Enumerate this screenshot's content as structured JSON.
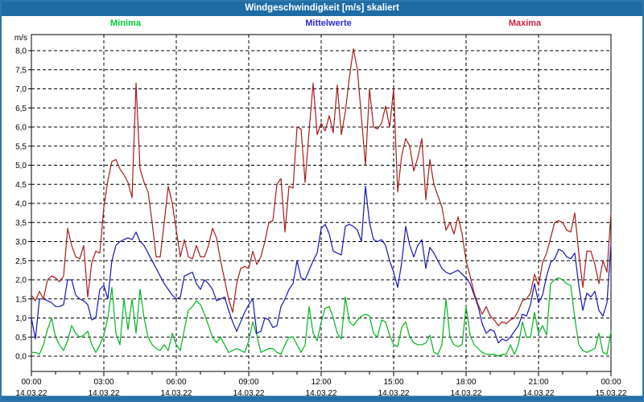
{
  "window": {
    "title": "Windgeschwindigkeit [m/s] skaliert",
    "titlebar_color": "#1e6ca3",
    "frame_color": "#2e77ad"
  },
  "legend": {
    "items": [
      {
        "label": "Minima",
        "color": "#00cc33"
      },
      {
        "label": "Mittelwerte",
        "color": "#2a2ad4"
      },
      {
        "label": "Maxima",
        "color": "#cc2244"
      }
    ]
  },
  "axis": {
    "unit_label": "m/s",
    "y_tick_labels": [
      "8,0",
      "7,5",
      "7,0",
      "6,5",
      "6,0",
      "5,5",
      "5,0",
      "4,5",
      "4,0",
      "3,5",
      "3,0",
      "2,5",
      "2,0",
      "1,5",
      "1,0",
      "0,5",
      "0,0"
    ],
    "x_ticks": [
      {
        "time": "00:00",
        "date": "14.03.22"
      },
      {
        "time": "03:00",
        "date": "14.03.22"
      },
      {
        "time": "06:00",
        "date": "14.03.22"
      },
      {
        "time": "09:00",
        "date": "14.03.22"
      },
      {
        "time": "12:00",
        "date": "14.03.22"
      },
      {
        "time": "15:00",
        "date": "14.03.22"
      },
      {
        "time": "18:00",
        "date": "14.03.22"
      },
      {
        "time": "21:00",
        "date": "14.03.22"
      },
      {
        "time": "00:00",
        "date": "15.03.22"
      }
    ]
  },
  "chart_data": {
    "type": "line",
    "title": "Windgeschwindigkeit [m/s] skaliert",
    "xlabel": "",
    "ylabel": "m/s",
    "ylim": [
      0,
      8.4
    ],
    "y_tick_step": 0.5,
    "grid": "dashed both axes",
    "legend_position": "top",
    "x_start": "14.03.22 00:00",
    "x_end": "15.03.22 00:00",
    "interval_minutes": 10,
    "series": [
      {
        "name": "Minima",
        "color": "#00b41e",
        "values": [
          0.1,
          0.1,
          0.05,
          0.3,
          0.7,
          1.0,
          0.5,
          0.3,
          0.15,
          0.4,
          0.8,
          0.6,
          0.5,
          0.55,
          0.65,
          0.3,
          0.1,
          0.3,
          0.55,
          1.0,
          1.8,
          0.6,
          0.3,
          1.5,
          0.7,
          1.5,
          0.6,
          1.75,
          1.0,
          0.5,
          0.3,
          0.2,
          0.15,
          0.3,
          0.15,
          0.6,
          0.3,
          0.15,
          0.7,
          1.2,
          1.3,
          1.45,
          1.35,
          1.1,
          0.8,
          0.5,
          0.35,
          0.5,
          0.3,
          0.1,
          0.15,
          0.2,
          0.15,
          0.1,
          0.4,
          0.9,
          0.55,
          0.1,
          0.15,
          0.2,
          0.2,
          0.1,
          0.05,
          0.3,
          0.5,
          0.5,
          0.3,
          0.1,
          0.3,
          1.3,
          0.6,
          0.4,
          0.9,
          1.25,
          1.3,
          1.0,
          0.6,
          0.45,
          1.55,
          0.9,
          0.8,
          0.95,
          1.05,
          1.1,
          1.05,
          0.6,
          0.5,
          0.95,
          0.9,
          0.55,
          0.3,
          0.25,
          0.75,
          0.9,
          0.5,
          0.35,
          0.3,
          0.3,
          0.35,
          0.55,
          0.1,
          0.05,
          0.3,
          1.5,
          0.5,
          0.3,
          0.25,
          0.3,
          1.3,
          0.55,
          0.3,
          0.2,
          0.1,
          0.05,
          0.05,
          0.05,
          0.0,
          0.05,
          0.05,
          0.3,
          0.05,
          0.3,
          0.9,
          0.5,
          0.5,
          1.15,
          0.6,
          0.8,
          0.55,
          1.9,
          2.0,
          2.05,
          2.0,
          1.9,
          1.85,
          1.0,
          0.3,
          0.15,
          0.1,
          0.15,
          0.2,
          0.6,
          0.1,
          0.05,
          0.65
        ]
      },
      {
        "name": "Mittelwerte",
        "color": "#1515b5",
        "values": [
          1.0,
          0.45,
          1.5,
          1.5,
          1.45,
          1.4,
          1.3,
          1.3,
          1.35,
          2.0,
          2.0,
          1.6,
          1.5,
          1.45,
          1.35,
          0.95,
          1.0,
          1.75,
          1.85,
          1.5,
          2.5,
          2.9,
          3.0,
          3.05,
          3.1,
          3.05,
          3.25,
          3.0,
          2.9,
          2.7,
          2.5,
          2.3,
          2.1,
          1.9,
          1.75,
          1.6,
          1.5,
          1.55,
          2.1,
          2.15,
          2.2,
          1.9,
          1.75,
          2.0,
          1.9,
          1.75,
          1.45,
          1.5,
          1.55,
          1.2,
          0.9,
          0.65,
          0.9,
          1.15,
          1.35,
          1.5,
          0.6,
          0.65,
          1.0,
          0.95,
          0.75,
          0.8,
          1.3,
          1.5,
          1.75,
          1.9,
          2.5,
          2.05,
          2.0,
          2.25,
          2.5,
          2.7,
          3.35,
          3.45,
          3.2,
          2.75,
          2.7,
          2.65,
          3.4,
          3.45,
          3.4,
          3.3,
          3.0,
          4.45,
          3.5,
          3.05,
          3.0,
          3.05,
          2.9,
          2.5,
          2.2,
          1.8,
          2.45,
          3.4,
          2.9,
          2.6,
          2.9,
          3.05,
          2.3,
          2.85,
          2.7,
          2.5,
          2.3,
          2.2,
          2.15,
          2.2,
          2.25,
          2.15,
          2.05,
          1.9,
          1.6,
          1.3,
          0.85,
          0.6,
          0.7,
          0.65,
          0.35,
          0.45,
          0.4,
          0.5,
          0.65,
          0.8,
          1.1,
          1.05,
          1.35,
          1.9,
          1.4,
          1.6,
          2.1,
          2.45,
          2.55,
          2.8,
          2.75,
          2.6,
          2.55,
          2.7,
          1.85,
          1.2,
          1.65,
          1.55,
          1.7,
          1.2,
          1.05,
          1.4,
          2.95
        ]
      },
      {
        "name": "Maxima",
        "color": "#a61c1c",
        "values": [
          1.6,
          1.45,
          1.7,
          1.5,
          2.0,
          2.1,
          2.05,
          1.95,
          2.1,
          3.35,
          2.9,
          2.6,
          2.55,
          2.9,
          1.55,
          2.45,
          2.75,
          2.7,
          3.9,
          4.6,
          5.1,
          5.15,
          4.9,
          4.75,
          4.55,
          4.15,
          7.15,
          4.9,
          4.55,
          4.3,
          3.5,
          2.6,
          2.6,
          3.5,
          4.45,
          4.0,
          3.3,
          2.6,
          3.05,
          2.6,
          2.55,
          2.9,
          2.6,
          2.6,
          2.9,
          3.35,
          3.1,
          2.5,
          2.0,
          1.5,
          1.15,
          1.9,
          2.3,
          2.35,
          2.3,
          2.75,
          2.4,
          2.6,
          3.0,
          3.5,
          3.55,
          4.5,
          4.65,
          3.25,
          4.45,
          4.4,
          6.0,
          5.95,
          4.55,
          5.9,
          7.15,
          5.8,
          6.1,
          5.9,
          6.3,
          5.85,
          7.1,
          5.8,
          6.4,
          7.3,
          8.05,
          7.5,
          6.25,
          5.0,
          7.0,
          6.0,
          5.95,
          6.1,
          6.55,
          6.0,
          7.0,
          4.3,
          5.25,
          5.7,
          5.5,
          4.85,
          5.2,
          5.7,
          4.1,
          5.15,
          4.5,
          4.2,
          3.9,
          3.3,
          3.5,
          3.2,
          3.65,
          3.2,
          2.5,
          2.1,
          1.65,
          1.35,
          1.1,
          1.3,
          1.05,
          0.95,
          0.8,
          0.9,
          0.85,
          0.95,
          1.0,
          1.2,
          1.45,
          1.5,
          1.65,
          2.15,
          1.85,
          2.45,
          2.7,
          3.1,
          3.5,
          3.55,
          3.5,
          3.3,
          3.25,
          3.75,
          2.7,
          1.8,
          2.75,
          2.75,
          2.4,
          1.9,
          2.5,
          2.2,
          3.75
        ]
      }
    ]
  }
}
